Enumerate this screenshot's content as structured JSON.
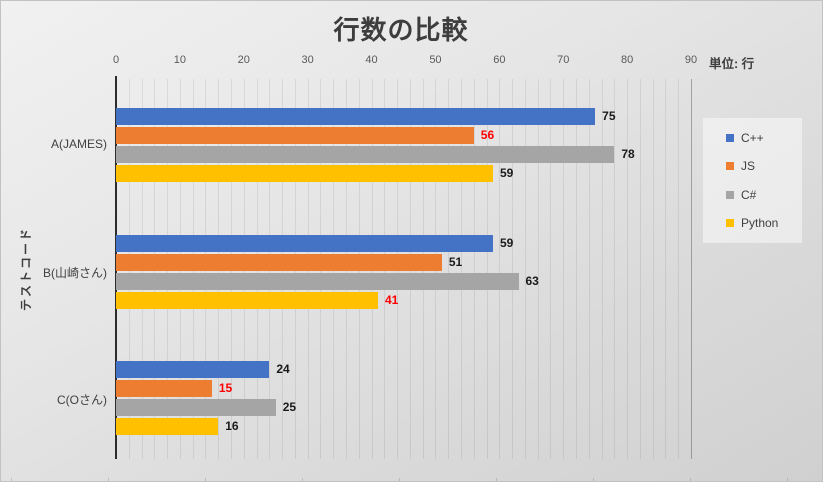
{
  "header": {
    "title": "行数の比較",
    "unit_label": "単位: 行"
  },
  "chart_data": {
    "type": "bar",
    "orientation": "horizontal",
    "title": "行数の比較",
    "unit_label": "単位: 行",
    "xlabel": "",
    "ylabel": "テストコード",
    "categories": [
      "A(JAMES)",
      "B(山崎さん)",
      "C(Oさん)"
    ],
    "series": [
      {
        "name": "C++",
        "color": "#4472C4",
        "values": [
          75,
          59,
          24
        ],
        "label_colors": [
          "#1a1a1a",
          "#1a1a1a",
          "#1a1a1a"
        ]
      },
      {
        "name": "JS",
        "color": "#ED7D31",
        "values": [
          56,
          51,
          15
        ],
        "label_colors": [
          "#ff0000",
          "#1a1a1a",
          "#ff0000"
        ]
      },
      {
        "name": "C#",
        "color": "#A5A5A5",
        "values": [
          78,
          63,
          25
        ],
        "label_colors": [
          "#1a1a1a",
          "#1a1a1a",
          "#1a1a1a"
        ]
      },
      {
        "name": "Python",
        "color": "#FFC000",
        "values": [
          59,
          41,
          16
        ],
        "label_colors": [
          "#1a1a1a",
          "#ff0000",
          "#1a1a1a"
        ]
      }
    ],
    "xlim": [
      0,
      90
    ],
    "ticks": [
      0,
      10,
      20,
      30,
      40,
      50,
      60,
      70,
      80,
      90
    ],
    "minor_grid_step": 2,
    "grid": "minor-vertical",
    "legend_position": "right",
    "legend": [
      "C++",
      "JS",
      "C#",
      "Python"
    ],
    "data_label_color_default": "#1a1a1a",
    "data_label_highlight_color": "#ff0000",
    "highlighted_values": [
      56,
      41,
      15
    ]
  },
  "colors": {
    "axis_line": "#2e2e2e",
    "tick_label": "#595959",
    "title_text": "#3d3d3d",
    "background_light": "#f1f1f1",
    "background_dark": "#d0d0d0"
  }
}
